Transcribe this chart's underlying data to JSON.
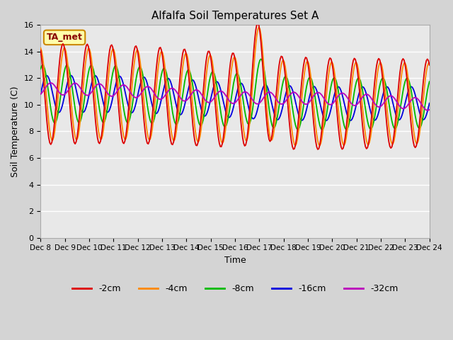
{
  "title": "Alfalfa Soil Temperatures Set A",
  "xlabel": "Time",
  "ylabel": "Soil Temperature (C)",
  "ylim": [
    0,
    16
  ],
  "yticks": [
    0,
    2,
    4,
    6,
    8,
    10,
    12,
    14,
    16
  ],
  "annotation": "TA_met",
  "fig_facecolor": "#d4d4d4",
  "ax_facecolor": "#e8e8e8",
  "colors": {
    "-2cm": "#dd0000",
    "-4cm": "#ff8800",
    "-8cm": "#00bb00",
    "-16cm": "#0000dd",
    "-32cm": "#bb00bb"
  },
  "xtick_labels": [
    "Dec 8",
    "Dec 9",
    "Dec 10",
    "Dec 11",
    "Dec 12",
    "Dec 13",
    "Dec 14",
    "Dec 15",
    "Dec 16",
    "Dec 17",
    "Dec 18",
    "Dec 19",
    "Dec 20",
    "Dec 21",
    "Dec 22",
    "Dec 23",
    "Dec 24"
  ],
  "n_days": 16,
  "lw": 1.3,
  "annotation_color": "#880000",
  "annotation_facecolor": "#ffffaa",
  "annotation_edgecolor": "#cc8800"
}
